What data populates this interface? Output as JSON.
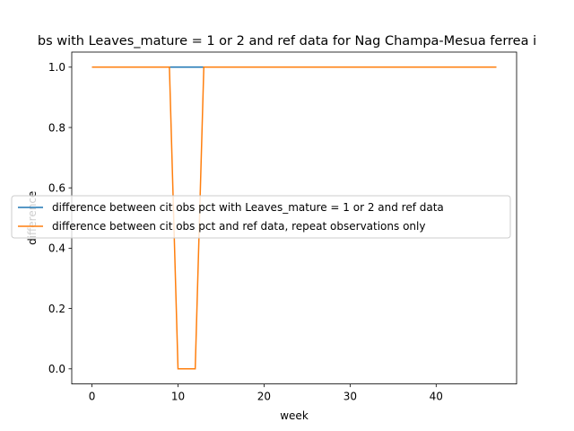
{
  "chart_data": {
    "type": "line",
    "title": "bs with Leaves_mature = 1 or 2 and ref data for Nag Champa-Mesua ferrea i",
    "xlabel": "week",
    "ylabel": "difference",
    "xlim": [
      -2.35,
      49.35
    ],
    "ylim": [
      -0.05,
      1.05
    ],
    "xticks": [
      "0",
      "10",
      "20",
      "30",
      "40"
    ],
    "yticks": [
      "0.0",
      "0.2",
      "0.4",
      "0.6",
      "0.8",
      "1.0"
    ],
    "grid": false,
    "legend_position": "center-left",
    "series": [
      {
        "name": "difference between cit obs pct with Leaves_mature = 1 or 2 and ref data",
        "color": "#1f77b4",
        "x": [
          0,
          47
        ],
        "y": [
          1.0,
          1.0
        ]
      },
      {
        "name": "difference between cit obs pct and ref data, repeat observations only",
        "color": "#ff7f0e",
        "x": [
          0,
          9,
          10,
          11,
          12,
          13,
          47
        ],
        "y": [
          1.0,
          1.0,
          0.0,
          0.0,
          0.0,
          1.0,
          1.0
        ]
      }
    ]
  }
}
